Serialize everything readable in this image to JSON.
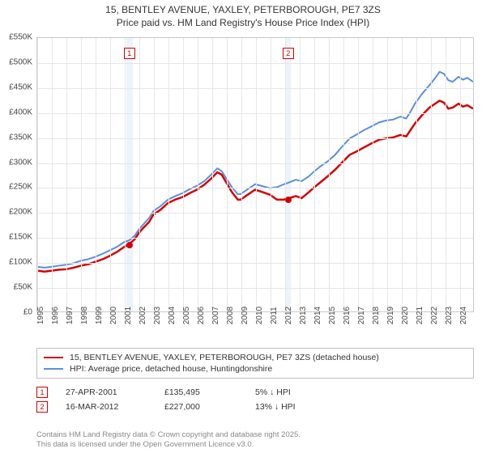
{
  "title": {
    "line1": "15, BENTLEY AVENUE, YAXLEY, PETERBOROUGH, PE7 3ZS",
    "line2": "Price paid vs. HM Land Registry's House Price Index (HPI)",
    "fontsize": 12,
    "color": "#333333"
  },
  "chart": {
    "type": "line",
    "background_color": "#ffffff",
    "grid_color": "#e6e6e6",
    "border_color": "#c9c9c9",
    "xlim": [
      1995,
      2025
    ],
    "ylim": [
      0,
      550
    ],
    "ytick_step": 50,
    "x_ticks": [
      1995,
      1996,
      1997,
      1998,
      1999,
      2000,
      2001,
      2002,
      2003,
      2004,
      2005,
      2006,
      2007,
      2008,
      2009,
      2010,
      2011,
      2012,
      2013,
      2014,
      2015,
      2016,
      2017,
      2018,
      2019,
      2020,
      2021,
      2022,
      2023,
      2024
    ],
    "y_label_prefix": "£",
    "y_label_suffix": "K",
    "axis_label_fontsize": 10,
    "bands": [
      {
        "start": 2001.1,
        "end": 2001.55
      },
      {
        "start": 2012.0,
        "end": 2012.4
      }
    ],
    "band_color": "#dceaf7",
    "markers": [
      {
        "id": "1",
        "x": 2001.32,
        "y_box": 530,
        "dot_x": 2001.32,
        "dot_y": 135.5,
        "color": "#d40000"
      },
      {
        "id": "2",
        "x": 2012.21,
        "y_box": 530,
        "dot_x": 2012.21,
        "dot_y": 227.0,
        "color": "#d40000"
      }
    ],
    "series": [
      {
        "name": "price_paid",
        "color": "#d40000",
        "width": 2.5,
        "points": [
          [
            1995.0,
            82
          ],
          [
            1995.5,
            80
          ],
          [
            1996.0,
            82
          ],
          [
            1996.5,
            84
          ],
          [
            1997.0,
            85
          ],
          [
            1997.5,
            88
          ],
          [
            1998.0,
            92
          ],
          [
            1998.5,
            95
          ],
          [
            1999.0,
            100
          ],
          [
            1999.5,
            105
          ],
          [
            2000.0,
            112
          ],
          [
            2000.5,
            120
          ],
          [
            2001.0,
            130
          ],
          [
            2001.32,
            135.5
          ],
          [
            2001.7,
            145
          ],
          [
            2002.0,
            158
          ],
          [
            2002.3,
            168
          ],
          [
            2002.7,
            180
          ],
          [
            2003.0,
            195
          ],
          [
            2003.5,
            205
          ],
          [
            2004.0,
            218
          ],
          [
            2004.5,
            225
          ],
          [
            2005.0,
            230
          ],
          [
            2005.5,
            238
          ],
          [
            2006.0,
            245
          ],
          [
            2006.5,
            255
          ],
          [
            2007.0,
            268
          ],
          [
            2007.4,
            280
          ],
          [
            2007.7,
            275
          ],
          [
            2008.0,
            260
          ],
          [
            2008.4,
            240
          ],
          [
            2008.8,
            225
          ],
          [
            2009.0,
            225
          ],
          [
            2009.5,
            235
          ],
          [
            2010.0,
            245
          ],
          [
            2010.5,
            240
          ],
          [
            2011.0,
            235
          ],
          [
            2011.5,
            225
          ],
          [
            2012.0,
            225
          ],
          [
            2012.21,
            227
          ],
          [
            2012.8,
            232
          ],
          [
            2013.2,
            228
          ],
          [
            2013.7,
            240
          ],
          [
            2014.0,
            248
          ],
          [
            2014.5,
            260
          ],
          [
            2015.0,
            272
          ],
          [
            2015.5,
            285
          ],
          [
            2016.0,
            300
          ],
          [
            2016.5,
            315
          ],
          [
            2017.0,
            322
          ],
          [
            2017.5,
            330
          ],
          [
            2018.0,
            338
          ],
          [
            2018.5,
            345
          ],
          [
            2019.0,
            348
          ],
          [
            2019.5,
            350
          ],
          [
            2020.0,
            355
          ],
          [
            2020.4,
            352
          ],
          [
            2020.7,
            365
          ],
          [
            2021.0,
            378
          ],
          [
            2021.5,
            395
          ],
          [
            2022.0,
            410
          ],
          [
            2022.4,
            418
          ],
          [
            2022.7,
            424
          ],
          [
            2023.0,
            420
          ],
          [
            2023.3,
            408
          ],
          [
            2023.6,
            410
          ],
          [
            2024.0,
            418
          ],
          [
            2024.3,
            412
          ],
          [
            2024.6,
            415
          ],
          [
            2025.0,
            408
          ]
        ]
      },
      {
        "name": "hpi",
        "color": "#5b8fd6",
        "width": 2,
        "points": [
          [
            1995.0,
            90
          ],
          [
            1995.5,
            88
          ],
          [
            1996.0,
            90
          ],
          [
            1996.5,
            92
          ],
          [
            1997.0,
            94
          ],
          [
            1997.5,
            97
          ],
          [
            1998.0,
            102
          ],
          [
            1998.5,
            105
          ],
          [
            1999.0,
            110
          ],
          [
            1999.5,
            116
          ],
          [
            2000.0,
            123
          ],
          [
            2000.5,
            130
          ],
          [
            2001.0,
            140
          ],
          [
            2001.32,
            143
          ],
          [
            2001.7,
            152
          ],
          [
            2002.0,
            165
          ],
          [
            2002.3,
            175
          ],
          [
            2002.7,
            188
          ],
          [
            2003.0,
            202
          ],
          [
            2003.5,
            212
          ],
          [
            2004.0,
            225
          ],
          [
            2004.5,
            232
          ],
          [
            2005.0,
            238
          ],
          [
            2005.5,
            246
          ],
          [
            2006.0,
            253
          ],
          [
            2006.5,
            262
          ],
          [
            2007.0,
            276
          ],
          [
            2007.4,
            288
          ],
          [
            2007.7,
            282
          ],
          [
            2008.0,
            268
          ],
          [
            2008.4,
            250
          ],
          [
            2008.8,
            236
          ],
          [
            2009.0,
            236
          ],
          [
            2009.5,
            246
          ],
          [
            2010.0,
            256
          ],
          [
            2010.5,
            252
          ],
          [
            2011.0,
            248
          ],
          [
            2011.5,
            250
          ],
          [
            2012.0,
            256
          ],
          [
            2012.21,
            258
          ],
          [
            2012.8,
            265
          ],
          [
            2013.2,
            262
          ],
          [
            2013.7,
            272
          ],
          [
            2014.0,
            280
          ],
          [
            2014.5,
            292
          ],
          [
            2015.0,
            302
          ],
          [
            2015.5,
            315
          ],
          [
            2016.0,
            332
          ],
          [
            2016.5,
            348
          ],
          [
            2017.0,
            356
          ],
          [
            2017.5,
            365
          ],
          [
            2018.0,
            372
          ],
          [
            2018.5,
            380
          ],
          [
            2019.0,
            384
          ],
          [
            2019.5,
            386
          ],
          [
            2020.0,
            392
          ],
          [
            2020.4,
            388
          ],
          [
            2020.7,
            402
          ],
          [
            2021.0,
            418
          ],
          [
            2021.5,
            438
          ],
          [
            2022.0,
            455
          ],
          [
            2022.4,
            470
          ],
          [
            2022.7,
            482
          ],
          [
            2023.0,
            478
          ],
          [
            2023.3,
            465
          ],
          [
            2023.6,
            462
          ],
          [
            2024.0,
            472
          ],
          [
            2024.3,
            466
          ],
          [
            2024.6,
            470
          ],
          [
            2025.0,
            462
          ]
        ]
      }
    ]
  },
  "legend": {
    "items": [
      {
        "label": "15, BENTLEY AVENUE, YAXLEY, PETERBOROUGH, PE7 3ZS (detached house)",
        "color": "#d40000"
      },
      {
        "label": "HPI: Average price, detached house, Huntingdonshire",
        "color": "#5b8fd6"
      }
    ],
    "border_color": "#bfbfbf",
    "fontsize": 10.5
  },
  "events": [
    {
      "id": "1",
      "color": "#d40000",
      "date": "27-APR-2001",
      "price": "£135,495",
      "delta": "5% ↓ HPI"
    },
    {
      "id": "2",
      "color": "#d40000",
      "date": "16-MAR-2012",
      "price": "£227,000",
      "delta": "13% ↓ HPI"
    }
  ],
  "footer": {
    "line1": "Contains HM Land Registry data © Crown copyright and database right 2025.",
    "line2": "This data is licensed under the Open Government Licence v3.0.",
    "color": "#888888",
    "fontsize": 9.5
  }
}
